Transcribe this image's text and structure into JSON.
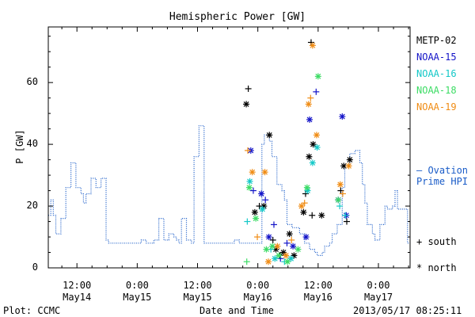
{
  "chart_data": {
    "type": "scatter",
    "title": "Hemispheric Power [GW]",
    "xlabel": "Date and Time",
    "ylabel": "P [GW]",
    "ylim": [
      0,
      78
    ],
    "yticks": [
      "0",
      "20",
      "40",
      "60"
    ],
    "xticks": [
      {
        "time": "12:00",
        "date": "May14"
      },
      {
        "time": "0:00",
        "date": "May15"
      },
      {
        "time": "12:00",
        "date": "May15"
      },
      {
        "time": "0:00",
        "date": "May16"
      },
      {
        "time": "12:00",
        "date": "May16"
      },
      {
        "time": "0:00",
        "date": "May17"
      }
    ],
    "x_unit": "hours since 2013-05-14 00:00",
    "xlim": [
      6.3,
      78.3
    ],
    "ovation_hours": [
      6.3,
      6.8,
      7.3,
      7.8,
      8.3,
      8.8,
      9.3,
      9.8,
      10.3,
      10.8,
      11.3,
      11.8,
      12.3,
      12.8,
      13.3,
      13.8,
      14.3,
      14.8,
      15.3,
      15.8,
      16.3,
      16.8,
      17.3,
      17.8,
      18.3,
      18.8,
      19.3,
      19.8,
      20.3,
      20.8,
      21.3,
      21.8,
      22.3,
      22.8,
      23.3,
      23.8,
      24.3,
      24.8,
      25.3,
      25.8,
      26.3,
      26.8,
      27.3,
      27.8,
      28.3,
      28.8,
      29.3,
      29.8,
      30.3,
      30.8,
      31.3,
      31.8,
      32.3,
      32.8,
      33.3,
      33.8,
      34.3,
      34.8,
      35.3,
      35.8,
      36.3,
      36.8,
      37.3,
      37.8,
      38.3,
      38.8,
      39.3,
      39.8,
      40.3,
      40.8,
      41.3,
      41.8,
      42.3,
      42.8,
      43.3,
      43.8,
      44.3,
      44.8,
      45.3,
      45.8,
      46.3,
      46.8,
      47.3,
      47.8,
      48.3,
      48.8,
      49.3,
      49.8,
      50.3,
      50.8,
      51.3,
      51.8,
      52.3,
      52.8,
      53.3,
      53.8,
      54.3,
      54.8,
      55.3,
      55.8,
      56.3,
      56.8,
      57.3,
      57.8,
      58.3,
      58.8,
      59.3,
      59.8,
      60.3,
      60.8,
      61.3,
      61.8,
      62.3,
      62.8,
      63.3,
      63.8,
      64.3,
      64.8,
      65.3,
      65.8,
      66.3,
      66.8,
      67.3,
      67.8,
      68.3,
      68.8,
      69.3,
      69.8,
      70.3,
      70.8,
      71.3,
      71.8,
      72.3,
      72.8,
      73.3,
      73.8,
      74.3,
      74.8,
      75.3,
      75.8,
      76.3,
      76.8,
      77.3,
      77.8
    ],
    "ovation_values": [
      17,
      22,
      17,
      11,
      11,
      16,
      16,
      26,
      26,
      34,
      34,
      26,
      26,
      24,
      21,
      24,
      24,
      29,
      29,
      26,
      26,
      29,
      29,
      9,
      8,
      8,
      8,
      8,
      8,
      8,
      8,
      8,
      8,
      8,
      8,
      8,
      8,
      9,
      9,
      8,
      8,
      8,
      9,
      9,
      16,
      16,
      9,
      9,
      11,
      11,
      10,
      9,
      8,
      16,
      16,
      9,
      9,
      8,
      36,
      36,
      46,
      46,
      8,
      8,
      8,
      8,
      8,
      8,
      8,
      8,
      8,
      8,
      8,
      8,
      9,
      9,
      8,
      8,
      8,
      8,
      8,
      8,
      8,
      8,
      8,
      40,
      43,
      43,
      41,
      36,
      36,
      27,
      27,
      25,
      22,
      14,
      14,
      13,
      13,
      13,
      11,
      11,
      8,
      8,
      6,
      6,
      5,
      4,
      4,
      5,
      7,
      7,
      8,
      11,
      11,
      14,
      14,
      26,
      33,
      33,
      37,
      37,
      38,
      38,
      34,
      27,
      21,
      14,
      14,
      11,
      9,
      9,
      14,
      14,
      20,
      19,
      19,
      20,
      25,
      19,
      19,
      19,
      19,
      8
    ],
    "series": [
      {
        "name": "METP-02",
        "color": "#000000",
        "markers": [
          {
            "x": 45.7,
            "y": 53,
            "m": "*"
          },
          {
            "x": 46.1,
            "y": 58,
            "m": "+"
          },
          {
            "x": 47.4,
            "y": 18,
            "m": "*"
          },
          {
            "x": 48.3,
            "y": 20,
            "m": "+"
          },
          {
            "x": 49.2,
            "y": 20,
            "m": "*"
          },
          {
            "x": 50.3,
            "y": 43,
            "m": "*"
          },
          {
            "x": 51.0,
            "y": 9,
            "m": "+"
          },
          {
            "x": 51.6,
            "y": 6,
            "m": "*"
          },
          {
            "x": 52.4,
            "y": 4,
            "m": "+"
          },
          {
            "x": 53.1,
            "y": 5,
            "m": "*"
          },
          {
            "x": 54.3,
            "y": 11,
            "m": "*"
          },
          {
            "x": 55.2,
            "y": 4,
            "m": "*"
          },
          {
            "x": 57.1,
            "y": 18,
            "m": "*"
          },
          {
            "x": 57.5,
            "y": 24,
            "m": "+"
          },
          {
            "x": 58.2,
            "y": 36,
            "m": "*"
          },
          {
            "x": 59.0,
            "y": 40,
            "m": "*"
          },
          {
            "x": 58.8,
            "y": 17,
            "m": "+"
          },
          {
            "x": 60.7,
            "y": 17,
            "m": "*"
          },
          {
            "x": 58.6,
            "y": 73,
            "m": "+"
          },
          {
            "x": 64.5,
            "y": 25,
            "m": "+"
          },
          {
            "x": 65.1,
            "y": 33,
            "m": "*"
          },
          {
            "x": 65.7,
            "y": 15,
            "m": "+"
          },
          {
            "x": 66.3,
            "y": 35,
            "m": "*"
          }
        ]
      },
      {
        "name": "NOAA-15",
        "color": "#1414c8",
        "markers": [
          {
            "x": 46.6,
            "y": 38,
            "m": "*"
          },
          {
            "x": 47.1,
            "y": 25,
            "m": "+"
          },
          {
            "x": 48.7,
            "y": 24,
            "m": "*"
          },
          {
            "x": 49.5,
            "y": 22,
            "m": "+"
          },
          {
            "x": 50.2,
            "y": 10,
            "m": "*"
          },
          {
            "x": 51.2,
            "y": 14,
            "m": "+"
          },
          {
            "x": 52.5,
            "y": 3,
            "m": "+"
          },
          {
            "x": 53.8,
            "y": 8,
            "m": "+"
          },
          {
            "x": 55.0,
            "y": 7,
            "m": "*"
          },
          {
            "x": 57.6,
            "y": 10,
            "m": "*"
          },
          {
            "x": 58.3,
            "y": 48,
            "m": "*"
          },
          {
            "x": 59.6,
            "y": 57,
            "m": "+"
          },
          {
            "x": 64.0,
            "y": 22,
            "m": "*"
          },
          {
            "x": 64.8,
            "y": 49,
            "m": "*"
          },
          {
            "x": 65.6,
            "y": 17,
            "m": "*"
          }
        ]
      },
      {
        "name": "NOAA-16",
        "color": "#14c8c8",
        "markers": [
          {
            "x": 45.9,
            "y": 15,
            "m": "+"
          },
          {
            "x": 46.4,
            "y": 28,
            "m": "*"
          },
          {
            "x": 48.9,
            "y": 19,
            "m": "*"
          },
          {
            "x": 50.6,
            "y": 6,
            "m": "+"
          },
          {
            "x": 51.4,
            "y": 3,
            "m": "*"
          },
          {
            "x": 53.3,
            "y": 2,
            "m": "+"
          },
          {
            "x": 54.6,
            "y": 3,
            "m": "*"
          },
          {
            "x": 57.9,
            "y": 25,
            "m": "*"
          },
          {
            "x": 58.9,
            "y": 34,
            "m": "*"
          },
          {
            "x": 59.8,
            "y": 39,
            "m": "*"
          },
          {
            "x": 64.3,
            "y": 20,
            "m": "+"
          },
          {
            "x": 65.4,
            "y": 17,
            "m": "+"
          }
        ]
      },
      {
        "name": "NOAA-18",
        "color": "#3cdc64",
        "markers": [
          {
            "x": 45.8,
            "y": 2,
            "m": "+"
          },
          {
            "x": 46.3,
            "y": 26,
            "m": "*"
          },
          {
            "x": 47.6,
            "y": 16,
            "m": "*"
          },
          {
            "x": 49.7,
            "y": 6,
            "m": "*"
          },
          {
            "x": 50.9,
            "y": 7,
            "m": "*"
          },
          {
            "x": 52.2,
            "y": 4,
            "m": "*"
          },
          {
            "x": 53.9,
            "y": 2,
            "m": "*"
          },
          {
            "x": 56.0,
            "y": 6,
            "m": "*"
          },
          {
            "x": 57.8,
            "y": 26,
            "m": "*"
          },
          {
            "x": 60.0,
            "y": 62,
            "m": "*"
          },
          {
            "x": 64.0,
            "y": 22,
            "m": "*"
          }
        ]
      },
      {
        "name": "NOAA-19",
        "color": "#f08c14",
        "markers": [
          {
            "x": 46.0,
            "y": 38,
            "m": "+"
          },
          {
            "x": 46.9,
            "y": 31,
            "m": "*"
          },
          {
            "x": 47.9,
            "y": 10,
            "m": "+"
          },
          {
            "x": 49.4,
            "y": 31,
            "m": "*"
          },
          {
            "x": 50.1,
            "y": 2,
            "m": "*"
          },
          {
            "x": 51.9,
            "y": 7,
            "m": "*"
          },
          {
            "x": 53.6,
            "y": 4,
            "m": "*"
          },
          {
            "x": 54.7,
            "y": 9,
            "m": "+"
          },
          {
            "x": 56.7,
            "y": 20,
            "m": "*"
          },
          {
            "x": 57.3,
            "y": 21,
            "m": "+"
          },
          {
            "x": 58.1,
            "y": 53,
            "m": "*"
          },
          {
            "x": 58.5,
            "y": 55,
            "m": "+"
          },
          {
            "x": 58.9,
            "y": 72,
            "m": "*"
          },
          {
            "x": 59.7,
            "y": 43,
            "m": "*"
          },
          {
            "x": 64.4,
            "y": 27,
            "m": "*"
          },
          {
            "x": 64.9,
            "y": 24,
            "m": "+"
          },
          {
            "x": 66.1,
            "y": 33,
            "m": "*"
          }
        ]
      }
    ],
    "ovation": {
      "name": "Ovation Prime HPI",
      "label_line1": "— Ovation",
      "label_line2": "Prime HPI",
      "color": "#1a5cc8"
    },
    "marker_legend": {
      "south": "+ south",
      "north": "* north"
    }
  },
  "footer": {
    "plot_label": "Plot: CCMC",
    "timestamp": "2013/05/17 08:25:11"
  }
}
